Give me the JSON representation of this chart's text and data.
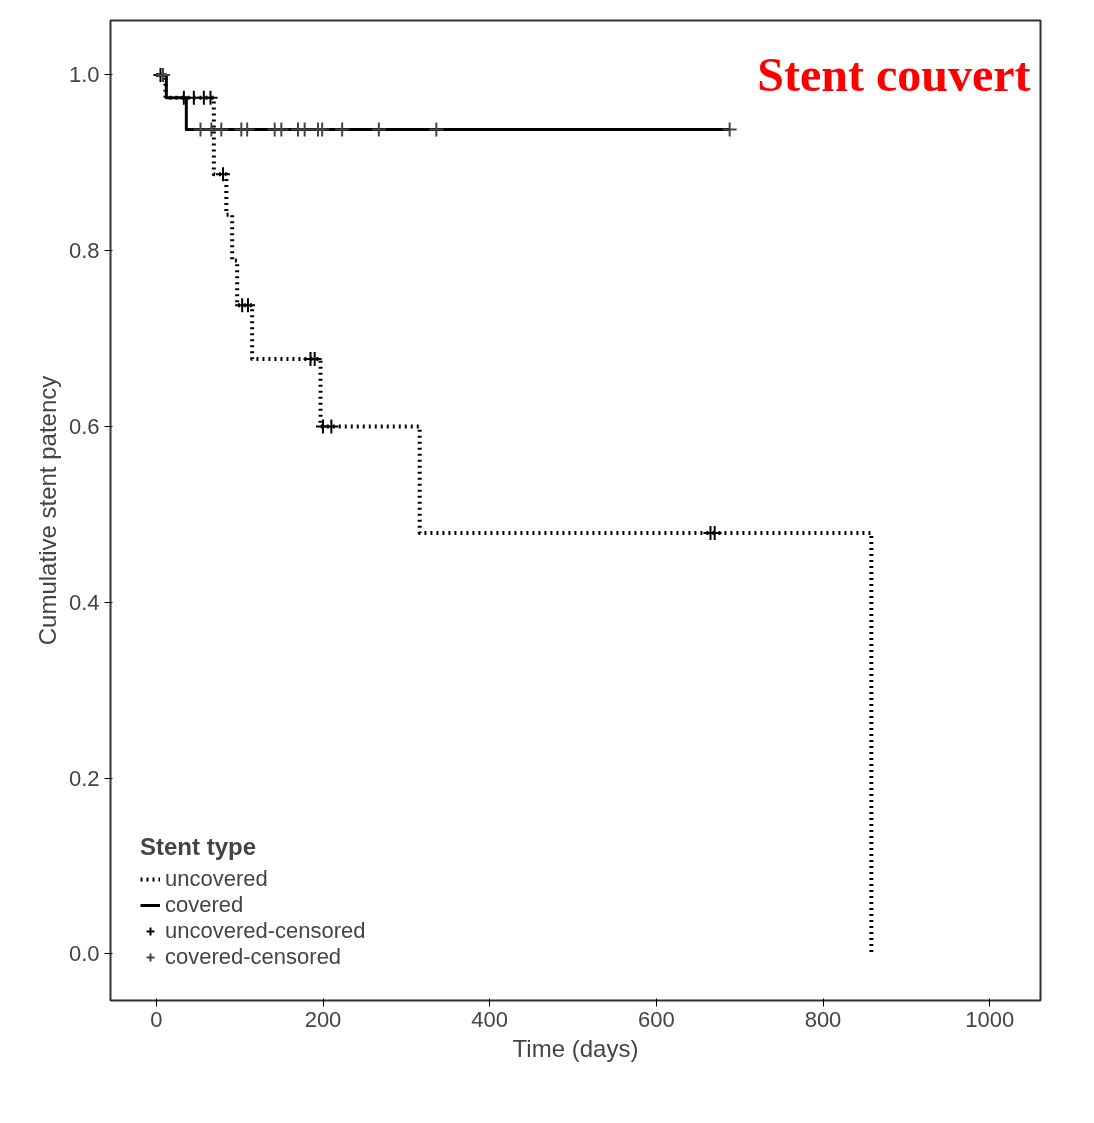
{
  "chart_data": {
    "type": "step",
    "xlabel": "Time (days)",
    "ylabel": "Cumulative stent patency",
    "legend_title": "Stent type",
    "legend": "bottom left",
    "grid": false,
    "xlim": [
      -55,
      1061
    ],
    "ylim": [
      -0.053,
      1.062
    ],
    "xticks": [
      0,
      200,
      400,
      600,
      800,
      1000
    ],
    "yticks": [
      {
        "value": 0,
        "label": "0.0"
      },
      {
        "value": 0.2,
        "label": "0.2"
      },
      {
        "value": 0.4,
        "label": "0.4"
      },
      {
        "value": 0.6,
        "label": "0.6"
      },
      {
        "value": 0.8,
        "label": "0.8"
      },
      {
        "value": 1,
        "label": "1.0"
      }
    ],
    "annotations": [
      "Stent couvert"
    ],
    "series": [
      {
        "name": "uncovered",
        "color": "#000000",
        "line_style": "dotted",
        "x": [
          0,
          11,
          69,
          84,
          91,
          97,
          115,
          197,
          316,
          858
        ],
        "values": [
          1.0,
          0.974,
          0.887,
          0.841,
          0.789,
          0.738,
          0.677,
          0.6,
          0.479,
          0.0
        ]
      },
      {
        "name": "covered",
        "color": "#000000",
        "line_style": "solid",
        "x": [
          0,
          12,
          36,
          688
        ],
        "values": [
          1.0,
          0.974,
          0.938,
          0.938
        ]
      },
      {
        "name": "uncovered-censored",
        "type": "scatter",
        "marker": "cross",
        "color": "#000000",
        "x": [
          5,
          33,
          45,
          57,
          65,
          80,
          103,
          110,
          185,
          190,
          200,
          210,
          665,
          670
        ],
        "values": [
          1.0,
          0.974,
          0.974,
          0.974,
          0.974,
          0.887,
          0.738,
          0.738,
          0.677,
          0.677,
          0.6,
          0.6,
          0.479,
          0.479
        ]
      },
      {
        "name": "covered-censored",
        "type": "scatter",
        "marker": "cross",
        "color": "#444444",
        "x": [
          8,
          53,
          66,
          78,
          102,
          109,
          142,
          150,
          170,
          178,
          194,
          199,
          223,
          267,
          336,
          688
        ],
        "values": [
          1.0,
          0.938,
          0.938,
          0.938,
          0.938,
          0.938,
          0.938,
          0.938,
          0.938,
          0.938,
          0.938,
          0.938,
          0.938,
          0.938,
          0.938,
          0.938
        ]
      }
    ]
  }
}
